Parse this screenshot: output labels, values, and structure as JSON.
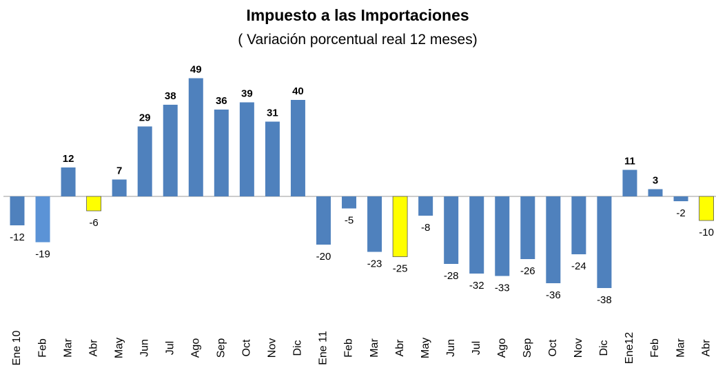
{
  "chart_data": {
    "type": "bar",
    "title": "Impuesto a las Importaciones",
    "subtitle": "( Variación porcentual real 12 meses)",
    "categories": [
      "Ene 10",
      "Feb",
      "Mar",
      "Abr",
      "May",
      "Jun",
      "Jul",
      "Ago",
      "Sep",
      "Oct",
      "Nov",
      "Dic",
      "Ene 11",
      "Feb",
      "Mar",
      "Abr",
      "May",
      "Jun",
      "Jul",
      "Ago",
      "Sep",
      "Oct",
      "Nov",
      "Dic",
      "Ene12",
      "Feb",
      "Mar",
      "Abr"
    ],
    "values": [
      -12,
      -19,
      12,
      -6,
      7,
      29,
      38,
      49,
      36,
      39,
      31,
      40,
      -20,
      -5,
      -23,
      -25,
      -8,
      -28,
      -32,
      -33,
      -26,
      -36,
      -24,
      -38,
      11,
      3,
      -2,
      -10
    ],
    "colors": [
      "#4f81bd",
      "#5b93d6",
      "#4f81bd",
      "#ffff00",
      "#4f81bd",
      "#4f81bd",
      "#4f81bd",
      "#4f81bd",
      "#4f81bd",
      "#4f81bd",
      "#4f81bd",
      "#4f81bd",
      "#4f81bd",
      "#4f81bd",
      "#4f81bd",
      "#ffff00",
      "#4f81bd",
      "#4f81bd",
      "#4f81bd",
      "#4f81bd",
      "#4f81bd",
      "#4f81bd",
      "#4f81bd",
      "#4f81bd",
      "#4f81bd",
      "#4f81bd",
      "#4f81bd",
      "#ffff00"
    ]
  }
}
